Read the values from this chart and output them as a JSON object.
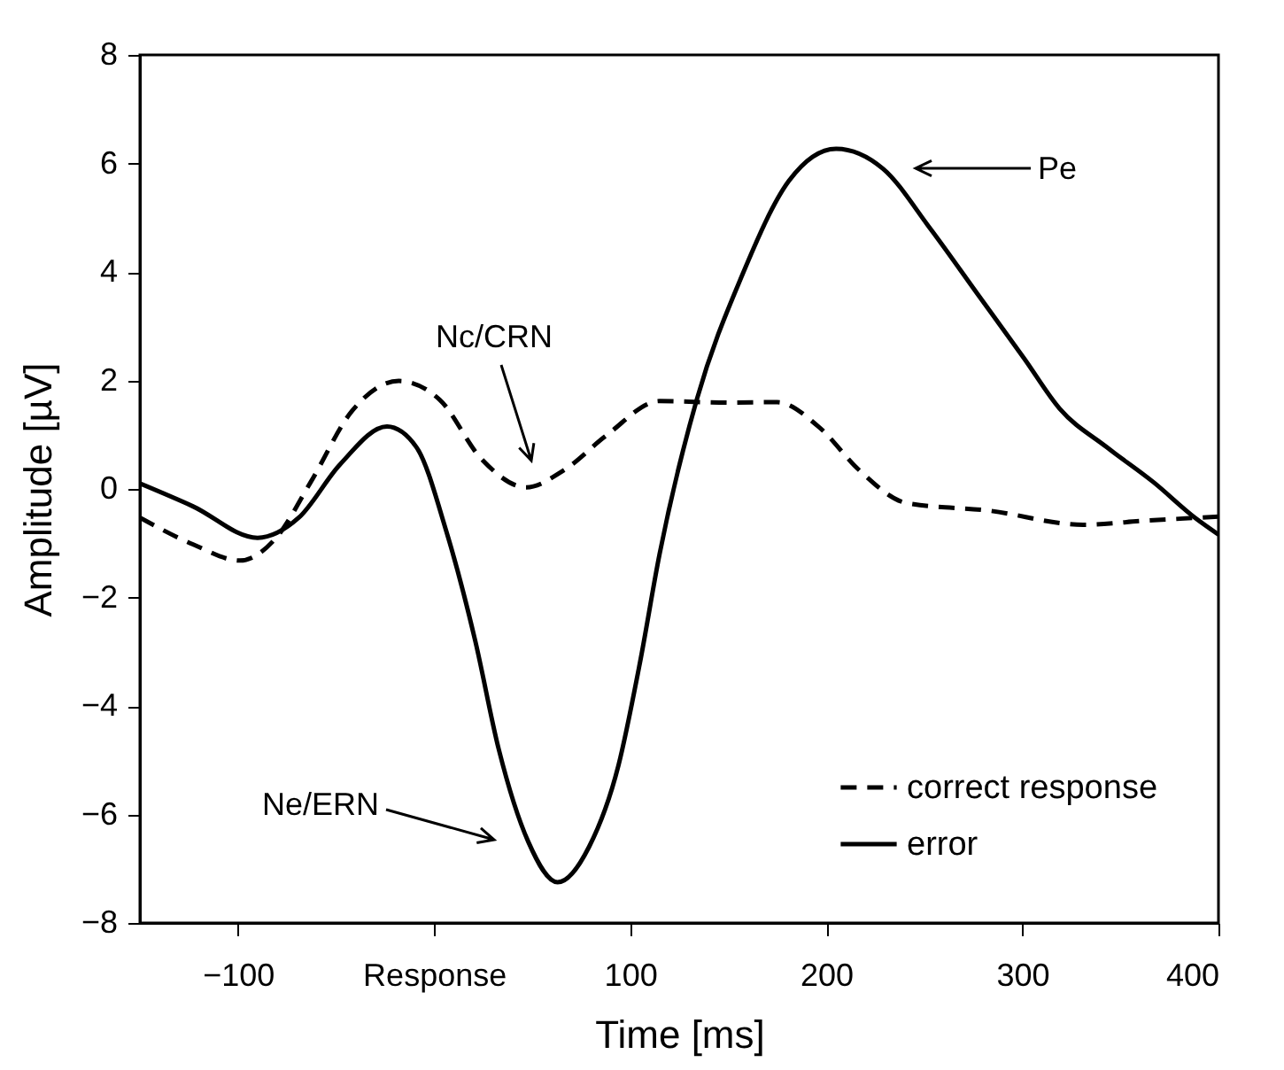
{
  "chart_data": {
    "type": "line",
    "xlabel": "Time [ms]",
    "ylabel": "Amplitude [µV]",
    "xlim": [
      -150,
      400
    ],
    "xticks": [
      -100,
      {
        "value": 0,
        "label": "Response"
      },
      100,
      200,
      300,
      400
    ],
    "ylim": [
      -8,
      8
    ],
    "yticks": [
      -8,
      -6,
      -4,
      -2,
      0,
      2,
      4,
      6,
      8
    ],
    "grid": false,
    "legend": "bottom right",
    "series": [
      {
        "name": "correct response",
        "color": "#000000",
        "line_style": "dashed",
        "x": [
          -150,
          -123,
          -99,
          -81,
          -63,
          -42,
          -18,
          3,
          24,
          47,
          66,
          88,
          115,
          151,
          175,
          196,
          217,
          241,
          283,
          331,
          361,
          400
        ],
        "values": [
          -0.53,
          -1.02,
          -1.32,
          -0.92,
          0.12,
          1.43,
          1.99,
          1.64,
          0.56,
          0.03,
          0.34,
          0.99,
          1.62,
          1.59,
          1.6,
          1.15,
          0.34,
          -0.26,
          -0.4,
          -0.66,
          -0.59,
          -0.51
        ]
      },
      {
        "name": "error",
        "color": "#000000",
        "line_style": "solid",
        "x": [
          -150,
          -123,
          -90,
          -69,
          -48,
          -24,
          -9,
          6,
          21,
          33,
          48,
          63,
          79,
          94,
          105,
          115,
          134,
          157,
          181,
          205,
          229,
          253,
          277,
          301,
          319,
          343,
          367,
          388,
          400
        ],
        "values": [
          0.1,
          -0.32,
          -0.9,
          -0.53,
          0.45,
          1.15,
          0.77,
          -0.75,
          -2.8,
          -4.8,
          -6.5,
          -7.25,
          -6.6,
          -5.1,
          -3.2,
          -1.2,
          1.65,
          3.93,
          5.68,
          6.27,
          5.9,
          4.8,
          3.6,
          2.4,
          1.48,
          0.77,
          0.12,
          -0.53,
          -0.84
        ]
      }
    ],
    "annotations": [
      "Pe",
      "Nc/CRN",
      "Ne/ERN"
    ]
  }
}
